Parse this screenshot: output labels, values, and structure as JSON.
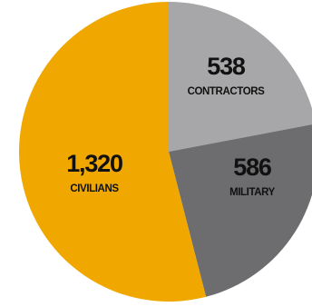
{
  "chart_data": {
    "type": "pie",
    "slices": [
      {
        "label": "CONTRACTORS",
        "value": 538,
        "value_text": "538",
        "color": "#a7a7a9"
      },
      {
        "label": "MILITARY",
        "value": 586,
        "value_text": "586",
        "color": "#6d6d6f"
      },
      {
        "label": "CIVILIANS",
        "value": 1320,
        "value_text": "1,320",
        "color": "#f0a800"
      }
    ],
    "start_angle_deg": 0,
    "direction": "clockwise",
    "legend": "none"
  }
}
